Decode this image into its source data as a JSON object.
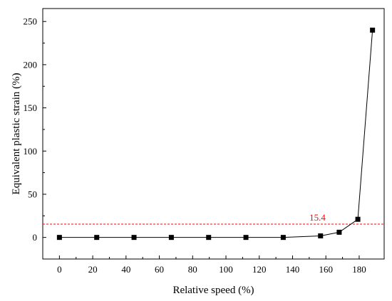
{
  "chart_data": {
    "type": "line",
    "xlabel": "Relative speed (%)",
    "ylabel": "Equivalent plastic strain (%)",
    "xlim": [
      -10,
      195
    ],
    "ylim": [
      -25,
      265
    ],
    "x_ticks": [
      0,
      20,
      40,
      60,
      80,
      100,
      120,
      140,
      160,
      180
    ],
    "y_ticks": [
      0,
      50,
      100,
      150,
      200,
      250
    ],
    "grid": false,
    "legend": "none",
    "series": [
      {
        "marker": "square",
        "color": "#000000",
        "points": [
          {
            "x": 0,
            "y": 0
          },
          {
            "x": 22.4,
            "y": 0
          },
          {
            "x": 44.8,
            "y": 0
          },
          {
            "x": 67.2,
            "y": 0
          },
          {
            "x": 89.6,
            "y": 0
          },
          {
            "x": 112,
            "y": 0
          },
          {
            "x": 134.4,
            "y": 0
          },
          {
            "x": 156.8,
            "y": 1.8
          },
          {
            "x": 168,
            "y": 6
          },
          {
            "x": 179.2,
            "y": 21
          },
          {
            "x": 188,
            "y": 240
          }
        ]
      }
    ],
    "reference_line": {
      "y": 15.4,
      "label": "15.4",
      "color": "#ff0000",
      "style": "dashed"
    }
  }
}
